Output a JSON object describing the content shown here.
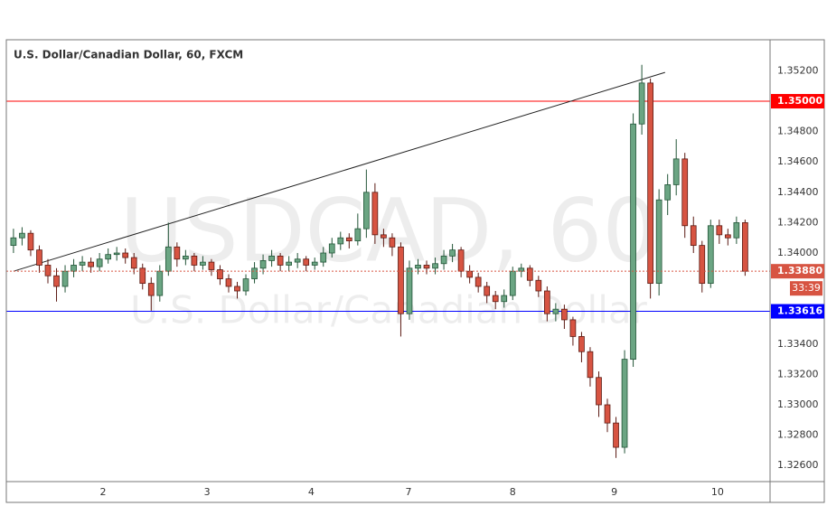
{
  "chart_data": {
    "type": "candlestick",
    "title": "U.S. Dollar/Canadian Dollar, 60, FXCM",
    "watermark": [
      "USDCAD, 60",
      "U.S. Dollar/Canadian Dollar"
    ],
    "up_color": "#6ba583",
    "down_color": "#d75442",
    "xlim": [
      -0.83,
      87.9
    ],
    "xticks": [
      {
        "value": 10.4,
        "label": "2"
      },
      {
        "value": 22.5,
        "label": "3"
      },
      {
        "value": 34.6,
        "label": "4"
      },
      {
        "value": 45.9,
        "label": "7"
      },
      {
        "value": 58,
        "label": "8"
      },
      {
        "value": 69.8,
        "label": "9"
      },
      {
        "value": 81.8,
        "label": "10"
      }
    ],
    "ylim": [
      1.32494,
      1.35405
    ],
    "yticks": [
      {
        "value": 1.352,
        "label": "1.35200"
      },
      {
        "value": 1.348,
        "label": "1.34800"
      },
      {
        "value": 1.346,
        "label": "1.34600"
      },
      {
        "value": 1.344,
        "label": "1.34400"
      },
      {
        "value": 1.342,
        "label": "1.34200"
      },
      {
        "value": 1.34,
        "label": "1.34000"
      },
      {
        "value": 1.334,
        "label": "1.33400"
      },
      {
        "value": 1.332,
        "label": "1.33200"
      },
      {
        "value": 1.33,
        "label": "1.33000"
      },
      {
        "value": 1.328,
        "label": "1.32800"
      },
      {
        "value": 1.326,
        "label": "1.32600"
      }
    ],
    "grid": true,
    "open": [
      1.3405,
      1.341,
      1.3413,
      1.3402,
      1.3392,
      1.3385,
      1.3378,
      1.3388,
      1.3392,
      1.3394,
      1.3391,
      1.3396,
      1.3399,
      1.34,
      1.3397,
      1.339,
      1.338,
      1.3372,
      1.3388,
      1.3404,
      1.3396,
      1.3398,
      1.3392,
      1.3394,
      1.3389,
      1.3383,
      1.3378,
      1.3375,
      1.3383,
      1.339,
      1.3395,
      1.3398,
      1.3392,
      1.3394,
      1.3396,
      1.3392,
      1.3394,
      1.34,
      1.3406,
      1.341,
      1.3408,
      1.3416,
      1.344,
      1.3412,
      1.341,
      1.3404,
      1.336,
      1.339,
      1.3392,
      1.339,
      1.3393,
      1.3398,
      1.3402,
      1.3388,
      1.3384,
      1.3378,
      1.3372,
      1.3368,
      1.3372,
      1.3388,
      1.339,
      1.3382,
      1.3375,
      1.336,
      1.3363,
      1.3356,
      1.3345,
      1.3335,
      1.3318,
      1.33,
      1.3288,
      1.3272,
      1.333,
      1.3485,
      1.3512,
      1.338,
      1.3435,
      1.3445,
      1.3462,
      1.3418,
      1.3405,
      1.338,
      1.3418,
      1.3412,
      1.341,
      1.342
    ],
    "high": [
      1.3416,
      1.3417,
      1.3415,
      1.3405,
      1.3396,
      1.339,
      1.3392,
      1.3396,
      1.3398,
      1.3397,
      1.34,
      1.3403,
      1.3404,
      1.3403,
      1.34,
      1.3393,
      1.3384,
      1.3392,
      1.342,
      1.3407,
      1.3402,
      1.34,
      1.3398,
      1.3396,
      1.3392,
      1.3386,
      1.3381,
      1.3386,
      1.3394,
      1.3399,
      1.3402,
      1.34,
      1.3398,
      1.34,
      1.3398,
      1.3397,
      1.3404,
      1.341,
      1.3414,
      1.3413,
      1.3426,
      1.3455,
      1.3446,
      1.3416,
      1.3413,
      1.3407,
      1.3395,
      1.3396,
      1.3395,
      1.3397,
      1.3402,
      1.3406,
      1.3404,
      1.3392,
      1.3387,
      1.3381,
      1.3375,
      1.3376,
      1.3391,
      1.3393,
      1.3392,
      1.3385,
      1.3378,
      1.3367,
      1.3366,
      1.3358,
      1.3348,
      1.3338,
      1.3322,
      1.3304,
      1.3292,
      1.3336,
      1.3492,
      1.3524,
      1.3515,
      1.3442,
      1.3452,
      1.3475,
      1.3466,
      1.3424,
      1.3408,
      1.3422,
      1.3422,
      1.3416,
      1.3424,
      1.3422
    ],
    "low": [
      1.34,
      1.3405,
      1.3398,
      1.3387,
      1.338,
      1.3368,
      1.3374,
      1.3384,
      1.3388,
      1.3387,
      1.3388,
      1.3393,
      1.3395,
      1.3393,
      1.3386,
      1.3376,
      1.3362,
      1.3368,
      1.3385,
      1.3391,
      1.3392,
      1.3388,
      1.3389,
      1.3385,
      1.3379,
      1.3374,
      1.337,
      1.3372,
      1.338,
      1.3386,
      1.3391,
      1.3388,
      1.3388,
      1.339,
      1.3388,
      1.3389,
      1.3391,
      1.3397,
      1.3402,
      1.3403,
      1.3405,
      1.341,
      1.3406,
      1.3404,
      1.3398,
      1.3345,
      1.3356,
      1.3386,
      1.3386,
      1.3386,
      1.3389,
      1.3394,
      1.3384,
      1.338,
      1.3374,
      1.3367,
      1.3363,
      1.3364,
      1.3369,
      1.3384,
      1.3378,
      1.3371,
      1.3355,
      1.3355,
      1.335,
      1.3339,
      1.3328,
      1.3312,
      1.3292,
      1.3282,
      1.3265,
      1.3268,
      1.3325,
      1.3478,
      1.337,
      1.3372,
      1.3425,
      1.3438,
      1.341,
      1.34,
      1.3374,
      1.3377,
      1.3406,
      1.3405,
      1.3406,
      1.3385
    ],
    "close": [
      1.341,
      1.3413,
      1.3402,
      1.3392,
      1.3385,
      1.3378,
      1.3388,
      1.3392,
      1.3394,
      1.3391,
      1.3396,
      1.3399,
      1.34,
      1.3397,
      1.339,
      1.338,
      1.3372,
      1.3388,
      1.3404,
      1.3396,
      1.3398,
      1.3392,
      1.3394,
      1.3389,
      1.3383,
      1.3378,
      1.3375,
      1.3383,
      1.339,
      1.3395,
      1.3398,
      1.3392,
      1.3394,
      1.3396,
      1.3392,
      1.3394,
      1.34,
      1.3406,
      1.341,
      1.3408,
      1.3416,
      1.344,
      1.3412,
      1.341,
      1.3404,
      1.336,
      1.339,
      1.3392,
      1.339,
      1.3393,
      1.3398,
      1.3402,
      1.3388,
      1.3384,
      1.3378,
      1.3372,
      1.3368,
      1.3372,
      1.3388,
      1.339,
      1.3382,
      1.3375,
      1.336,
      1.3363,
      1.3356,
      1.3345,
      1.3335,
      1.3318,
      1.33,
      1.3288,
      1.3272,
      1.333,
      1.3485,
      1.3512,
      1.338,
      1.3435,
      1.3445,
      1.3462,
      1.3418,
      1.3405,
      1.338,
      1.3418,
      1.3412,
      1.341,
      1.342,
      1.3388
    ],
    "trendline": {
      "x": [
        0,
        75.7
      ],
      "y": [
        1.3388,
        1.3519
      ],
      "color": "#222222"
    },
    "hlines": [
      {
        "value": 1.35,
        "label": "1.35000",
        "color": "#ff0000"
      },
      {
        "value": 1.33616,
        "label": "1.33616",
        "color": "#0000ff"
      }
    ],
    "last_price": {
      "value": 1.3388,
      "label": "1.33880",
      "countdown": "33:39",
      "color": "#d75442"
    }
  }
}
